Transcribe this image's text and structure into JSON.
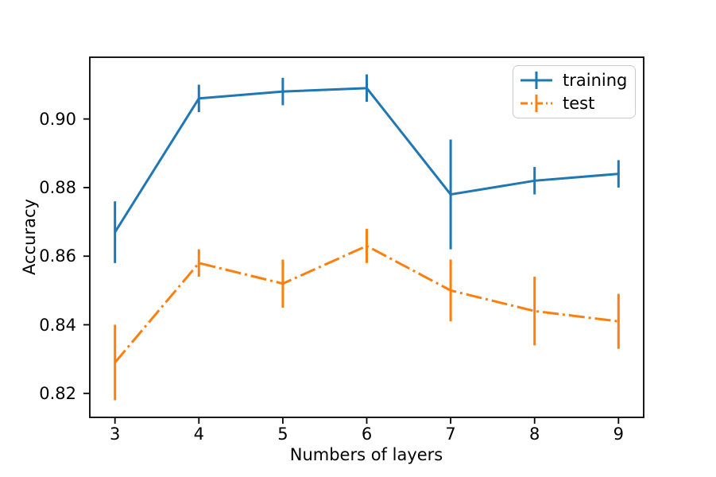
{
  "chart_data": {
    "type": "line",
    "title": "",
    "xlabel": "Numbers of layers",
    "ylabel": "Accuracy",
    "x": [
      3,
      4,
      5,
      6,
      7,
      8,
      9
    ],
    "x_ticks": [
      "3",
      "4",
      "5",
      "6",
      "7",
      "8",
      "9"
    ],
    "y_tick_values": [
      0.82,
      0.84,
      0.86,
      0.88,
      0.9
    ],
    "y_ticks": [
      "0.82",
      "0.84",
      "0.86",
      "0.88",
      "0.90"
    ],
    "xlim": [
      2.7,
      9.3
    ],
    "ylim": [
      0.813,
      0.918
    ],
    "grid": false,
    "legend_position": "upper right",
    "series": [
      {
        "name": "training",
        "color": "#1f77b4",
        "linestyle": "solid",
        "dash": "",
        "values": [
          0.867,
          0.906,
          0.908,
          0.909,
          0.878,
          0.882,
          0.884
        ],
        "yerr": [
          0.009,
          0.004,
          0.004,
          0.004,
          0.016,
          0.004,
          0.004
        ]
      },
      {
        "name": "test",
        "color": "#ff7f0e",
        "linestyle": "dashdot",
        "dash": "20 5 3 5",
        "values": [
          0.829,
          0.858,
          0.852,
          0.863,
          0.85,
          0.844,
          0.841
        ],
        "yerr": [
          0.011,
          0.004,
          0.007,
          0.005,
          0.009,
          0.01,
          0.008
        ]
      }
    ]
  }
}
